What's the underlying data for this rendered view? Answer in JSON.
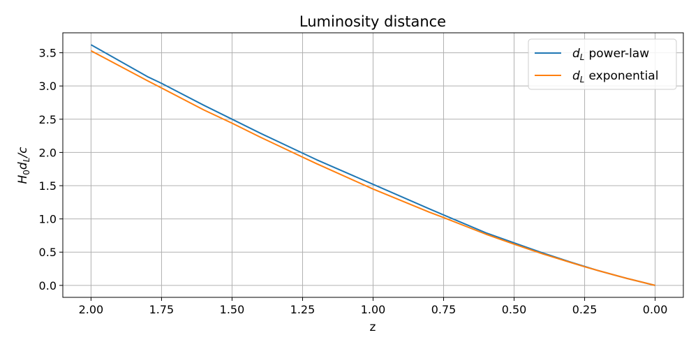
{
  "chart_data": {
    "type": "line",
    "title": "Luminosity distance",
    "xlabel": "z",
    "ylabel": {
      "H": "H",
      "sub0": "0",
      "d": "d",
      "subL": "L",
      "rest": "/c"
    },
    "xlim": [
      2.1,
      -0.1
    ],
    "ylim": [
      -0.18,
      3.8
    ],
    "x_inverted": true,
    "grid": true,
    "legend_position": "upper right",
    "xticks": [
      2.0,
      1.75,
      1.5,
      1.25,
      1.0,
      0.75,
      0.5,
      0.25,
      0.0
    ],
    "xtick_labels": [
      "2.00",
      "1.75",
      "1.50",
      "1.25",
      "1.00",
      "0.75",
      "0.50",
      "0.25",
      "0.00"
    ],
    "yticks": [
      0.0,
      0.5,
      1.0,
      1.5,
      2.0,
      2.5,
      3.0,
      3.5
    ],
    "ytick_labels": [
      "0.0",
      "0.5",
      "1.0",
      "1.5",
      "2.0",
      "2.5",
      "3.0",
      "3.5"
    ],
    "series": [
      {
        "name": "power-law",
        "legend_symbol": "d",
        "legend_sub": "L",
        "color": "#1f77b4",
        "x": [
          0.0,
          0.1,
          0.2,
          0.25,
          0.3,
          0.4,
          0.5,
          0.6,
          0.75,
          0.8,
          1.0,
          1.2,
          1.25,
          1.4,
          1.5,
          1.6,
          1.75,
          1.8,
          2.0
        ],
        "y": [
          0.0,
          0.105,
          0.22,
          0.285,
          0.35,
          0.49,
          0.64,
          0.79,
          1.06,
          1.15,
          1.52,
          1.89,
          1.99,
          2.29,
          2.5,
          2.71,
          3.04,
          3.14,
          3.62
        ]
      },
      {
        "name": "exponential",
        "legend_symbol": "d",
        "legend_sub": "L",
        "color": "#ff7f0e",
        "x": [
          0.0,
          0.1,
          0.2,
          0.25,
          0.3,
          0.4,
          0.5,
          0.6,
          0.75,
          0.8,
          1.0,
          1.2,
          1.25,
          1.4,
          1.5,
          1.6,
          1.75,
          1.8,
          2.0
        ],
        "y": [
          0.0,
          0.105,
          0.22,
          0.28,
          0.345,
          0.475,
          0.62,
          0.77,
          1.02,
          1.1,
          1.45,
          1.83,
          1.93,
          2.23,
          2.44,
          2.64,
          2.97,
          3.08,
          3.53
        ]
      }
    ]
  }
}
